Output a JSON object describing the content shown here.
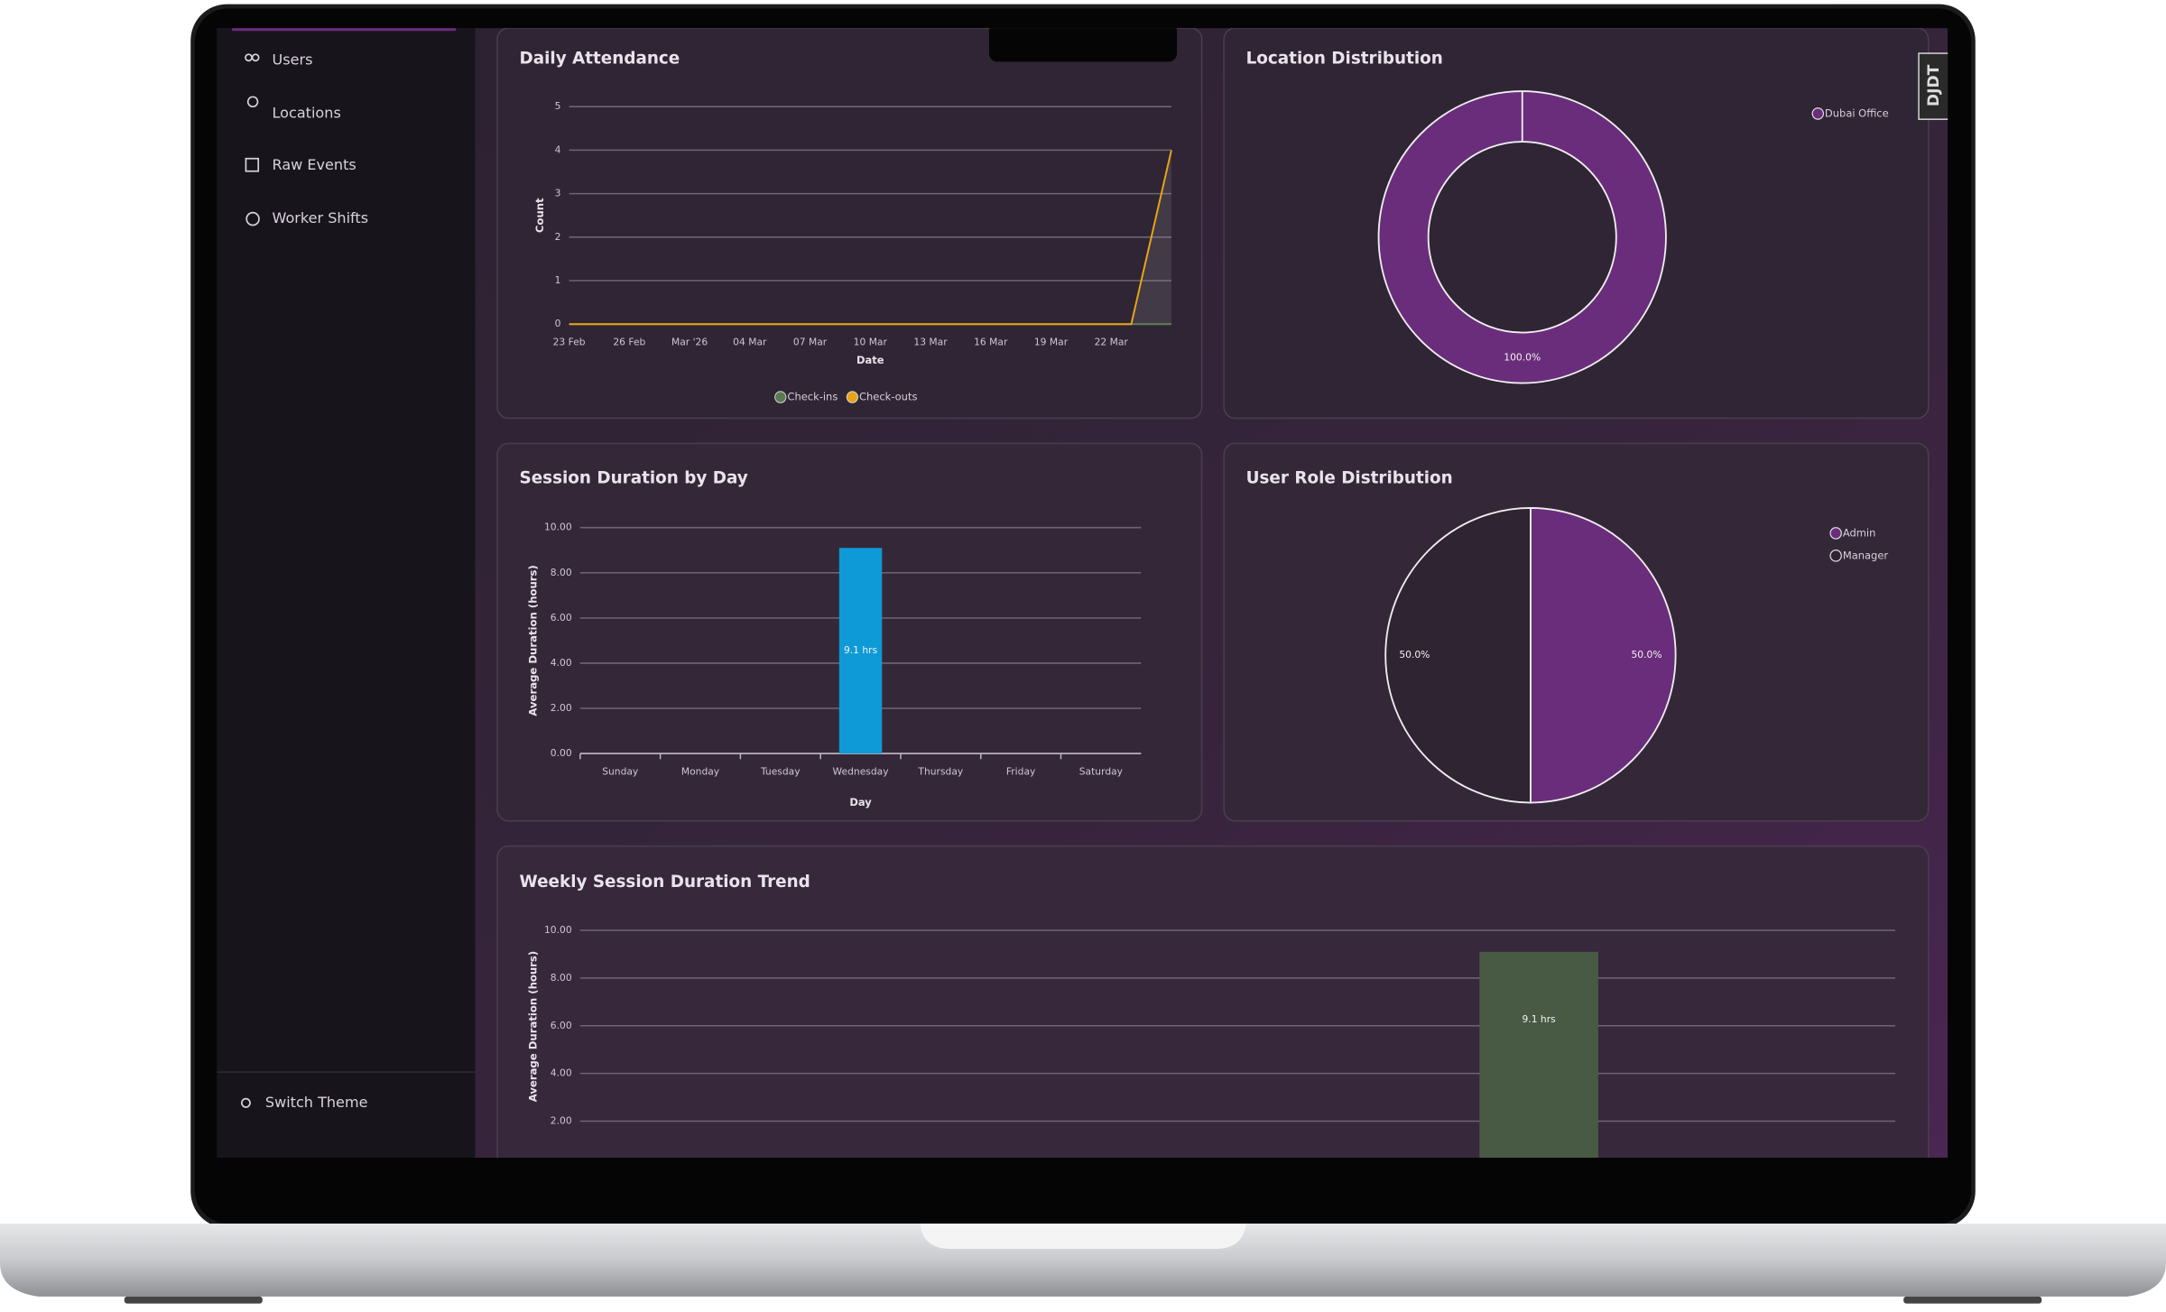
{
  "sidebar": {
    "items": [
      "Users",
      "Locations",
      "Raw Events",
      "Worker Shifts"
    ],
    "footer": [
      "Switch Theme"
    ]
  },
  "badge": "DJDT",
  "chart_data": [
    {
      "type": "line",
      "title": "Daily Attendance",
      "x_label": "Date",
      "y_label": "Count",
      "categories": [
        "23 Feb",
        null,
        null,
        "26 Feb",
        null,
        null,
        "Mar '26",
        null,
        null,
        "04 Mar",
        null,
        null,
        "07 Mar",
        null,
        null,
        "10 Mar",
        null,
        null,
        "13 Mar",
        null,
        null,
        "16 Mar",
        null,
        null,
        "19 Mar",
        null,
        null,
        "22 Mar",
        null,
        null,
        null
      ],
      "series": [
        {
          "name": "Check-ins",
          "color": "#5a7a52",
          "values": [
            0,
            0,
            0,
            0,
            0,
            0,
            0,
            0,
            0,
            0,
            0,
            0,
            0,
            0,
            0,
            0,
            0,
            0,
            0,
            0,
            0,
            0,
            0,
            0,
            0,
            0,
            0,
            0,
            0,
            0,
            0
          ]
        },
        {
          "name": "Check-outs",
          "color": "#e8a317",
          "values": [
            0,
            0,
            0,
            0,
            0,
            0,
            0,
            0,
            0,
            0,
            0,
            0,
            0,
            0,
            0,
            0,
            0,
            0,
            0,
            0,
            0,
            0,
            0,
            0,
            0,
            0,
            0,
            0,
            0,
            2,
            4
          ]
        }
      ],
      "area": true,
      "ylim": [
        0,
        5
      ],
      "yticks": [
        0,
        1,
        2,
        3,
        4,
        5
      ],
      "grid": true,
      "legend": "bottom"
    },
    {
      "type": "donut",
      "title": "Location Distribution",
      "categories": [
        "Dubai Office"
      ],
      "values": [
        100
      ],
      "value_labels": [
        "100.0%"
      ],
      "colors": [
        "#6a2d7b"
      ],
      "legend": "top-right"
    },
    {
      "type": "bar",
      "title": "Session Duration by Day",
      "x_label": "Day",
      "y_label": "Average Duration (hours)",
      "categories": [
        "Sunday",
        "Monday",
        "Tuesday",
        "Wednesday",
        "Thursday",
        "Friday",
        "Saturday"
      ],
      "values": [
        0,
        0,
        0,
        9.1,
        0,
        0,
        0
      ],
      "value_labels": [
        null,
        null,
        null,
        "9.1 hrs",
        null,
        null,
        null
      ],
      "color": "#0e9ad6",
      "ylim": [
        0,
        10
      ],
      "yticks": [
        {
          "value": 0,
          "label": "0.00"
        },
        {
          "value": 2,
          "label": "2.00"
        },
        {
          "value": 4,
          "label": "4.00"
        },
        {
          "value": 6,
          "label": "6.00"
        },
        {
          "value": 8,
          "label": "8.00"
        },
        {
          "value": 10,
          "label": "10.00"
        }
      ],
      "grid": true
    },
    {
      "type": "pie",
      "title": "User Role Distribution",
      "categories": [
        "Admin",
        "Manager"
      ],
      "values": [
        50,
        50
      ],
      "value_labels": [
        "50.0%",
        "50.0%"
      ],
      "colors": [
        "#6a2d7b",
        "#2e2432"
      ],
      "legend": "top-right"
    },
    {
      "type": "bar",
      "title": "Weekly Session Duration Trend",
      "y_label": "Average Duration (hours)",
      "values": [
        9.1
      ],
      "value_labels": [
        "9.1 hrs"
      ],
      "color": "#485a44",
      "ylim": [
        0,
        10
      ],
      "yticks": [
        {
          "value": 2,
          "label": "2.00"
        },
        {
          "value": 4,
          "label": "4.00"
        },
        {
          "value": 6,
          "label": "6.00"
        },
        {
          "value": 8,
          "label": "8.00"
        },
        {
          "value": 10,
          "label": "10.00"
        }
      ],
      "grid": true
    }
  ]
}
